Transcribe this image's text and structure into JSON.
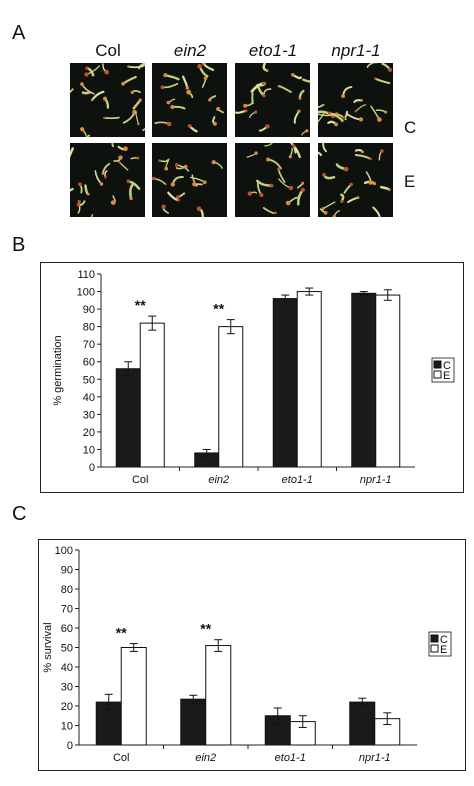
{
  "panel_a": {
    "letter": "A",
    "columns": [
      {
        "label": "Col",
        "italic": false
      },
      {
        "label": "ein2",
        "italic": true
      },
      {
        "label": "eto1-1",
        "italic": true
      },
      {
        "label": "npr1-1",
        "italic": true
      }
    ],
    "rows": [
      "C",
      "E"
    ]
  },
  "panel_b": {
    "letter": "B"
  },
  "panel_c": {
    "letter": "C"
  },
  "chart_data": [
    {
      "type": "bar",
      "categories": [
        "Col",
        "ein2",
        "eto1-1",
        "npr1-1"
      ],
      "series": [
        {
          "name": "C",
          "values": [
            56,
            8,
            96,
            99
          ],
          "errors": [
            4,
            2,
            2,
            1
          ],
          "color": "#1a1a1a"
        },
        {
          "name": "E",
          "values": [
            82,
            80,
            100,
            98
          ],
          "errors": [
            4,
            4,
            2,
            3
          ],
          "color": "#ffffff"
        }
      ],
      "significance": [
        "**",
        "**",
        "",
        ""
      ],
      "ylabel": "% germination",
      "ylim": [
        0,
        110
      ],
      "yticks": [
        0,
        10,
        20,
        30,
        40,
        50,
        60,
        70,
        80,
        90,
        100,
        110
      ],
      "legend": "right",
      "grid": false
    },
    {
      "type": "bar",
      "categories": [
        "Col",
        "ein2",
        "eto1-1",
        "npr1-1"
      ],
      "series": [
        {
          "name": "C",
          "values": [
            22,
            23.5,
            15,
            22
          ],
          "errors": [
            4,
            2,
            4,
            2
          ],
          "color": "#1a1a1a"
        },
        {
          "name": "E",
          "values": [
            50,
            51,
            12,
            13.5
          ],
          "errors": [
            2,
            3,
            3,
            3
          ],
          "color": "#ffffff"
        }
      ],
      "significance": [
        "**",
        "**",
        "",
        ""
      ],
      "ylabel": "% survival",
      "ylim": [
        0,
        100
      ],
      "yticks": [
        0,
        10,
        20,
        30,
        40,
        50,
        60,
        70,
        80,
        90,
        100
      ],
      "legend": "right",
      "grid": false
    }
  ]
}
